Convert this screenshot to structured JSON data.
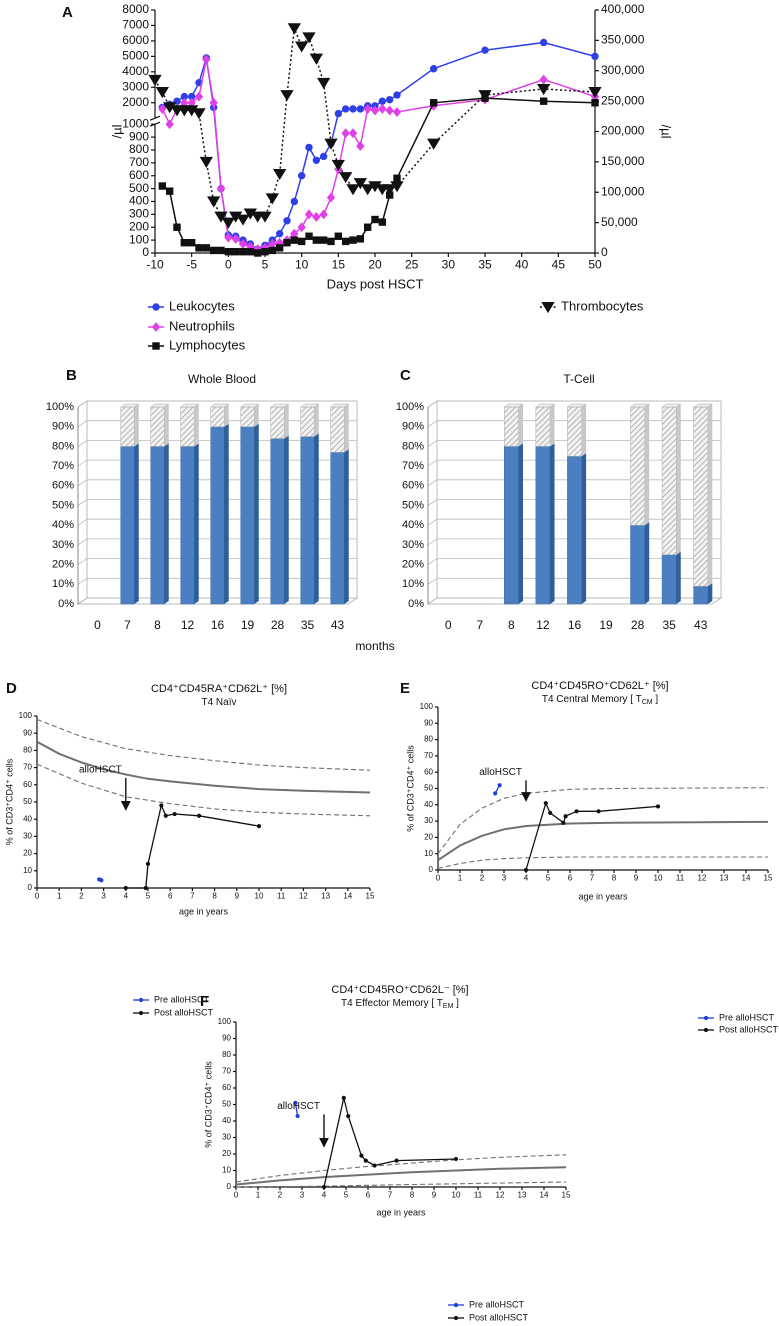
{
  "chart_data": [
    {
      "type": "line",
      "panel": "A",
      "x_label": "Days post HSCT",
      "y_label": "/µl",
      "y2_label": "/µl",
      "xlim": [
        -10,
        50
      ],
      "xticks": [
        -10,
        -5,
        0,
        5,
        10,
        15,
        20,
        25,
        30,
        35,
        40,
        45,
        50
      ],
      "ylim": [
        0,
        8000
      ],
      "ybreak": 1000,
      "yticks": [
        0,
        100,
        200,
        300,
        400,
        500,
        600,
        700,
        800,
        900,
        1000,
        2000,
        3000,
        4000,
        5000,
        6000,
        7000,
        8000
      ],
      "y2lim": [
        0,
        400000
      ],
      "y2ticks": [
        0,
        {
          "value": 50000,
          "label": "50,000"
        },
        {
          "value": 100000,
          "label": "100,000"
        },
        {
          "value": 150000,
          "label": "150,000"
        },
        {
          "value": 200000,
          "label": "200,000"
        },
        {
          "value": 250000,
          "label": "250,000"
        },
        {
          "value": 300000,
          "label": "300,000"
        },
        {
          "value": 350000,
          "label": "350,000"
        },
        {
          "value": 400000,
          "label": "400,000"
        }
      ],
      "series": [
        {
          "name": "Leukocytes",
          "color": "#2f3fe8",
          "marker": "circle",
          "dash": "solid",
          "x": [
            -9,
            -8,
            -7,
            -6,
            -5,
            -4,
            -3,
            -2,
            -1,
            0,
            1,
            2,
            3,
            4,
            5,
            6,
            7,
            8,
            9,
            10,
            11,
            12,
            13,
            14,
            15,
            16,
            17,
            18,
            19,
            20,
            21,
            22,
            23,
            28,
            35,
            43,
            50
          ],
          "values": [
            1700,
            1900,
            2100,
            2400,
            2400,
            3300,
            4900,
            1700,
            500,
            140,
            130,
            100,
            70,
            30,
            60,
            100,
            150,
            250,
            400,
            600,
            820,
            720,
            750,
            850,
            1300,
            1600,
            1600,
            1600,
            1800,
            1800,
            2100,
            2200,
            2500,
            4200,
            5400,
            5900,
            5000
          ]
        },
        {
          "name": "Neutrophils",
          "color": "#e040e8",
          "marker": "diamond",
          "dash": "solid",
          "x": [
            -9,
            -8,
            -7,
            -6,
            -5,
            -4,
            -3,
            -2,
            -1,
            0,
            1,
            2,
            3,
            4,
            5,
            6,
            7,
            8,
            9,
            10,
            11,
            12,
            13,
            14,
            15,
            16,
            17,
            18,
            19,
            20,
            21,
            22,
            23,
            28,
            35,
            43,
            50
          ],
          "values": [
            1600,
            1000,
            1600,
            2000,
            2000,
            2400,
            4800,
            2000,
            500,
            120,
            110,
            70,
            50,
            30,
            40,
            70,
            80,
            100,
            150,
            200,
            300,
            280,
            300,
            430,
            650,
            930,
            930,
            830,
            1600,
            1500,
            1600,
            1500,
            1400,
            1800,
            2200,
            3500,
            2400
          ]
        },
        {
          "name": "Lymphocytes",
          "color": "#111111",
          "marker": "square",
          "dash": "solid",
          "x": [
            -9,
            -8,
            -7,
            -6,
            -5,
            -4,
            -3,
            -2,
            -1,
            0,
            1,
            2,
            3,
            4,
            5,
            6,
            7,
            8,
            9,
            10,
            11,
            12,
            13,
            14,
            15,
            16,
            17,
            18,
            19,
            20,
            21,
            22,
            23,
            28,
            35,
            43,
            50
          ],
          "values": [
            520,
            480,
            200,
            80,
            80,
            40,
            40,
            20,
            20,
            10,
            10,
            10,
            10,
            0,
            10,
            20,
            40,
            80,
            100,
            90,
            130,
            100,
            100,
            90,
            130,
            90,
            100,
            110,
            200,
            260,
            240,
            450,
            580,
            2000,
            2300,
            2100,
            2000
          ]
        },
        {
          "name": "Thrombocytes",
          "color": "#111111",
          "marker": "triangle-down",
          "dash": "dotted",
          "axis": "y2",
          "x": [
            -10,
            -9,
            -8,
            -7,
            -6,
            -5,
            -4,
            -3,
            -2,
            -1,
            0,
            1,
            2,
            3,
            4,
            5,
            6,
            7,
            8,
            9,
            10,
            11,
            12,
            13,
            14,
            15,
            16,
            17,
            18,
            19,
            20,
            21,
            22,
            23,
            28,
            35,
            43,
            50
          ],
          "values": [
            285000,
            265000,
            240000,
            235000,
            235000,
            235000,
            230000,
            150000,
            85000,
            60000,
            50000,
            60000,
            55000,
            65000,
            60000,
            60000,
            90000,
            130000,
            260000,
            370000,
            340000,
            355000,
            320000,
            280000,
            180000,
            145000,
            125000,
            105000,
            115000,
            105000,
            110000,
            105000,
            105000,
            110000,
            180000,
            260000,
            270000,
            265000
          ]
        }
      ]
    },
    {
      "type": "bar",
      "panel": "B",
      "title": "Whole Blood",
      "stacked": true,
      "categories": [
        "0",
        "7",
        "8",
        "12",
        "16",
        "19",
        "28",
        "35",
        "43"
      ],
      "ylim": [
        0,
        100
      ],
      "yticks": [
        {
          "value": 0,
          "label": "0%"
        },
        {
          "value": 10,
          "label": "10%"
        },
        {
          "value": 20,
          "label": "20%"
        },
        {
          "value": 30,
          "label": "30%"
        },
        {
          "value": 40,
          "label": "40%"
        },
        {
          "value": 50,
          "label": "50%"
        },
        {
          "value": 60,
          "label": "60%"
        },
        {
          "value": 70,
          "label": "70%"
        },
        {
          "value": 80,
          "label": "80%"
        },
        {
          "value": 90,
          "label": "90%"
        },
        {
          "value": 100,
          "label": "100%"
        }
      ],
      "series": [
        {
          "color": "#4a7fc1",
          "pattern": "solid",
          "values": [
            null,
            80,
            80,
            80,
            90,
            90,
            84,
            85,
            77
          ]
        },
        {
          "color": "#d9d9d9",
          "pattern": "hatched",
          "values": [
            null,
            20,
            20,
            20,
            10,
            10,
            16,
            15,
            23
          ]
        }
      ]
    },
    {
      "type": "bar",
      "panel": "C",
      "title": "T-Cell",
      "stacked": true,
      "categories": [
        "0",
        "7",
        "8",
        "12",
        "16",
        "19",
        "28",
        "35",
        "43"
      ],
      "ylim": [
        0,
        100
      ],
      "yticks": [
        {
          "value": 0,
          "label": "0%"
        },
        {
          "value": 10,
          "label": "10%"
        },
        {
          "value": 20,
          "label": "20%"
        },
        {
          "value": 30,
          "label": "30%"
        },
        {
          "value": 40,
          "label": "40%"
        },
        {
          "value": 50,
          "label": "50%"
        },
        {
          "value": 60,
          "label": "60%"
        },
        {
          "value": 70,
          "label": "70%"
        },
        {
          "value": 80,
          "label": "80%"
        },
        {
          "value": 90,
          "label": "90%"
        },
        {
          "value": 100,
          "label": "100%"
        }
      ],
      "series": [
        {
          "color": "#4a7fc1",
          "pattern": "solid",
          "values": [
            null,
            null,
            80,
            80,
            75,
            null,
            40,
            25,
            9
          ]
        },
        {
          "color": "#d9d9d9",
          "pattern": "hatched",
          "values": [
            null,
            null,
            20,
            20,
            25,
            null,
            60,
            75,
            91
          ]
        }
      ]
    },
    {
      "type": "line",
      "panel": "D",
      "title": "CD4⁺CD45RA⁺CD62L⁺ [%]",
      "subtitle": [
        "T4 Naïv"
      ],
      "x_label": "age in years",
      "y_label": "% of CD3⁺CD4⁺ cells",
      "xlim": [
        0,
        15
      ],
      "xticks": [
        0,
        1,
        2,
        3,
        4,
        5,
        6,
        7,
        8,
        9,
        10,
        11,
        12,
        13,
        14,
        15
      ],
      "ylim": [
        0,
        100
      ],
      "yticks": [
        0,
        10,
        20,
        30,
        40,
        50,
        60,
        70,
        80,
        90,
        100
      ],
      "reference": [
        {
          "style": "solid",
          "color": "#707070",
          "x": [
            0,
            1,
            2,
            3,
            4,
            5,
            6,
            8,
            10,
            12,
            15
          ],
          "values": [
            85,
            78,
            73,
            69,
            66,
            63.5,
            62,
            59.5,
            57.5,
            56.5,
            55.5
          ]
        },
        {
          "style": "dashed",
          "color": "#707070",
          "x": [
            0,
            2,
            4,
            6,
            8,
            10,
            12,
            15
          ],
          "values": [
            98,
            88,
            81,
            77,
            74,
            71.5,
            70,
            68.5
          ]
        },
        {
          "style": "dashed",
          "color": "#707070",
          "x": [
            0,
            2,
            4,
            6,
            8,
            10,
            12,
            15
          ],
          "values": [
            72,
            61,
            53,
            49,
            46,
            44,
            43,
            42
          ]
        }
      ],
      "annotation": {
        "text": "alloHSCT",
        "x": 4,
        "y": [
          64,
          46
        ]
      },
      "series": [
        {
          "name": "Pre alloHSCT",
          "color": "#1f3fd6",
          "marker": "dot",
          "dash": "solid",
          "x": [
            2.8,
            2.9
          ],
          "values": [
            5,
            4.5
          ]
        },
        {
          "name": "Post alloHSCT",
          "color": "#111111",
          "marker": "dot",
          "dash": "solid",
          "x": [
            4,
            4.9,
            5,
            5.6,
            5.8,
            6.2,
            7.3,
            10
          ],
          "values": [
            0,
            0,
            14,
            48,
            42,
            43,
            42,
            36
          ]
        }
      ]
    },
    {
      "type": "line",
      "panel": "E",
      "title": "CD4⁺CD45RO⁺CD62L⁺ [%]",
      "subtitle": [
        "T4 Central Memory [ T",
        "CM",
        " ]"
      ],
      "x_label": "age in years",
      "y_label": "% of CD3⁺CD4⁺ cells",
      "xlim": [
        0,
        15
      ],
      "xticks": [
        0,
        1,
        2,
        3,
        4,
        5,
        6,
        7,
        8,
        9,
        10,
        11,
        12,
        13,
        14,
        15
      ],
      "ylim": [
        0,
        100
      ],
      "yticks": [
        0,
        10,
        20,
        30,
        40,
        50,
        60,
        70,
        80,
        90,
        100
      ],
      "reference": [
        {
          "style": "solid",
          "color": "#707070",
          "x": [
            0,
            1,
            2,
            3,
            4,
            6,
            8,
            15
          ],
          "values": [
            6,
            15,
            21,
            25,
            27,
            28.5,
            29,
            29.5
          ]
        },
        {
          "style": "dashed",
          "color": "#707070",
          "x": [
            0,
            1,
            2,
            3,
            4,
            6,
            8,
            15
          ],
          "values": [
            10,
            28,
            38,
            44,
            47,
            49.5,
            50,
            50.5
          ]
        },
        {
          "style": "dashed",
          "color": "#707070",
          "x": [
            0,
            1,
            2,
            3,
            4,
            6,
            15
          ],
          "values": [
            1,
            4,
            6,
            7,
            7.5,
            8,
            8
          ]
        }
      ],
      "annotation": {
        "text": "alloHSCT",
        "x": 4,
        "y": [
          55,
          43
        ]
      },
      "series": [
        {
          "name": "Pre alloHSCT",
          "color": "#1f3fd6",
          "marker": "dot",
          "dash": "solid",
          "x": [
            2.6,
            2.8
          ],
          "values": [
            47,
            52
          ]
        },
        {
          "name": "Post alloHSCT",
          "color": "#111111",
          "marker": "dot",
          "dash": "solid",
          "x": [
            4,
            4.9,
            5.1,
            5.7,
            5.8,
            6.3,
            7.3,
            10
          ],
          "values": [
            0,
            41,
            35,
            29,
            33,
            36,
            36,
            39
          ]
        }
      ]
    },
    {
      "type": "line",
      "panel": "F",
      "title": "CD4⁺CD45RO⁺CD62L⁻ [%]",
      "subtitle": [
        "T4 Effector Memory [ T",
        "EM",
        " ]"
      ],
      "x_label": "age in years",
      "y_label": "% of CD3⁺CD4⁺ cells",
      "xlim": [
        0,
        15
      ],
      "xticks": [
        0,
        1,
        2,
        3,
        4,
        5,
        6,
        7,
        8,
        9,
        10,
        11,
        12,
        13,
        14,
        15
      ],
      "ylim": [
        0,
        100
      ],
      "yticks": [
        0,
        10,
        20,
        30,
        40,
        50,
        60,
        70,
        80,
        90,
        100
      ],
      "reference": [
        {
          "style": "solid",
          "color": "#707070",
          "x": [
            0,
            2,
            4,
            6,
            8,
            10,
            12,
            15
          ],
          "values": [
            1.5,
            4,
            6,
            7.5,
            9,
            10,
            11,
            12
          ]
        },
        {
          "style": "dashed",
          "color": "#707070",
          "x": [
            0,
            2,
            4,
            6,
            8,
            10,
            12,
            15
          ],
          "values": [
            3,
            7,
            10,
            12.5,
            14.5,
            16.5,
            18,
            19.5
          ]
        },
        {
          "style": "dashed",
          "color": "#707070",
          "x": [
            0,
            4,
            8,
            15
          ],
          "values": [
            0,
            0.5,
            1.5,
            3
          ]
        }
      ],
      "annotation": {
        "text": "alloHSCT",
        "x": 4,
        "y": [
          44,
          25
        ]
      },
      "series": [
        {
          "name": "Pre alloHSCT",
          "color": "#1f3fd6",
          "marker": "dot",
          "dash": "solid",
          "x": [
            2.7,
            2.8
          ],
          "values": [
            51,
            43
          ]
        },
        {
          "name": "Post alloHSCT",
          "color": "#111111",
          "marker": "dot",
          "dash": "solid",
          "x": [
            4,
            4.9,
            5.1,
            5.7,
            5.9,
            6.3,
            7.3,
            10
          ],
          "values": [
            0,
            54,
            43,
            19,
            16,
            13,
            16,
            17
          ]
        }
      ]
    }
  ],
  "shared_x_label": "months"
}
